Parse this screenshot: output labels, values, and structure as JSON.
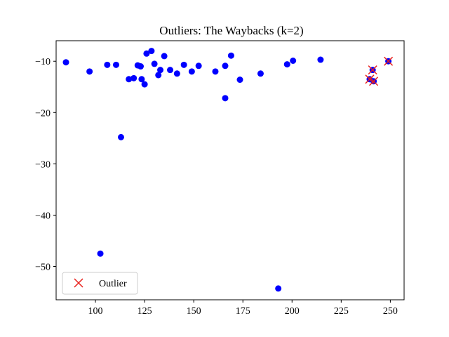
{
  "chart_data": {
    "type": "scatter",
    "title": "Outliers: The Waybacks (k=2)",
    "xlabel": "",
    "ylabel": "",
    "xlim": [
      80,
      257
    ],
    "ylim": [
      -56.5,
      -6
    ],
    "xticks": [
      100,
      125,
      150,
      175,
      200,
      225,
      250
    ],
    "yticks": [
      -10,
      -20,
      -30,
      -40,
      -50
    ],
    "grid": false,
    "legend": {
      "position": "lower-left",
      "entries": [
        "Outlier"
      ]
    },
    "colors": {
      "points": "#0000ff",
      "outlier": "#e8211c"
    },
    "series": [
      {
        "points": [
          [
            85,
            -10.2
          ],
          [
            97,
            -12
          ],
          [
            102.5,
            -47.5
          ],
          [
            106,
            -10.7
          ],
          [
            110.5,
            -10.7
          ],
          [
            113,
            -24.8
          ],
          [
            117,
            -13.5
          ],
          [
            119.5,
            -13.3
          ],
          [
            121.5,
            -10.8
          ],
          [
            123,
            -11
          ],
          [
            123.5,
            -13.5
          ],
          [
            125,
            -14.5
          ],
          [
            126,
            -8.5
          ],
          [
            128.5,
            -8
          ],
          [
            130,
            -10.5
          ],
          [
            132,
            -12.7
          ],
          [
            133,
            -11.7
          ],
          [
            135,
            -9
          ],
          [
            138,
            -11.7
          ],
          [
            141.5,
            -12.4
          ],
          [
            145,
            -10.7
          ],
          [
            149,
            -12
          ],
          [
            152.5,
            -10.9
          ],
          [
            161,
            -12
          ],
          [
            166,
            -10.9
          ],
          [
            166,
            -17.2
          ],
          [
            169,
            -8.9
          ],
          [
            173.5,
            -13.6
          ],
          [
            184,
            -12.4
          ],
          [
            193,
            -54.3
          ],
          [
            197.5,
            -10.6
          ],
          [
            200.5,
            -9.9
          ],
          [
            214.5,
            -9.7
          ],
          [
            239.5,
            -13.5
          ],
          [
            241,
            -11.7
          ],
          [
            241.5,
            -13.9
          ],
          [
            249,
            -10
          ]
        ]
      },
      {
        "name": "Outlier",
        "marker": "x",
        "points": [
          [
            239.5,
            -13.5
          ],
          [
            241,
            -11.7
          ],
          [
            241.5,
            -13.9
          ],
          [
            249,
            -10
          ]
        ]
      }
    ]
  }
}
